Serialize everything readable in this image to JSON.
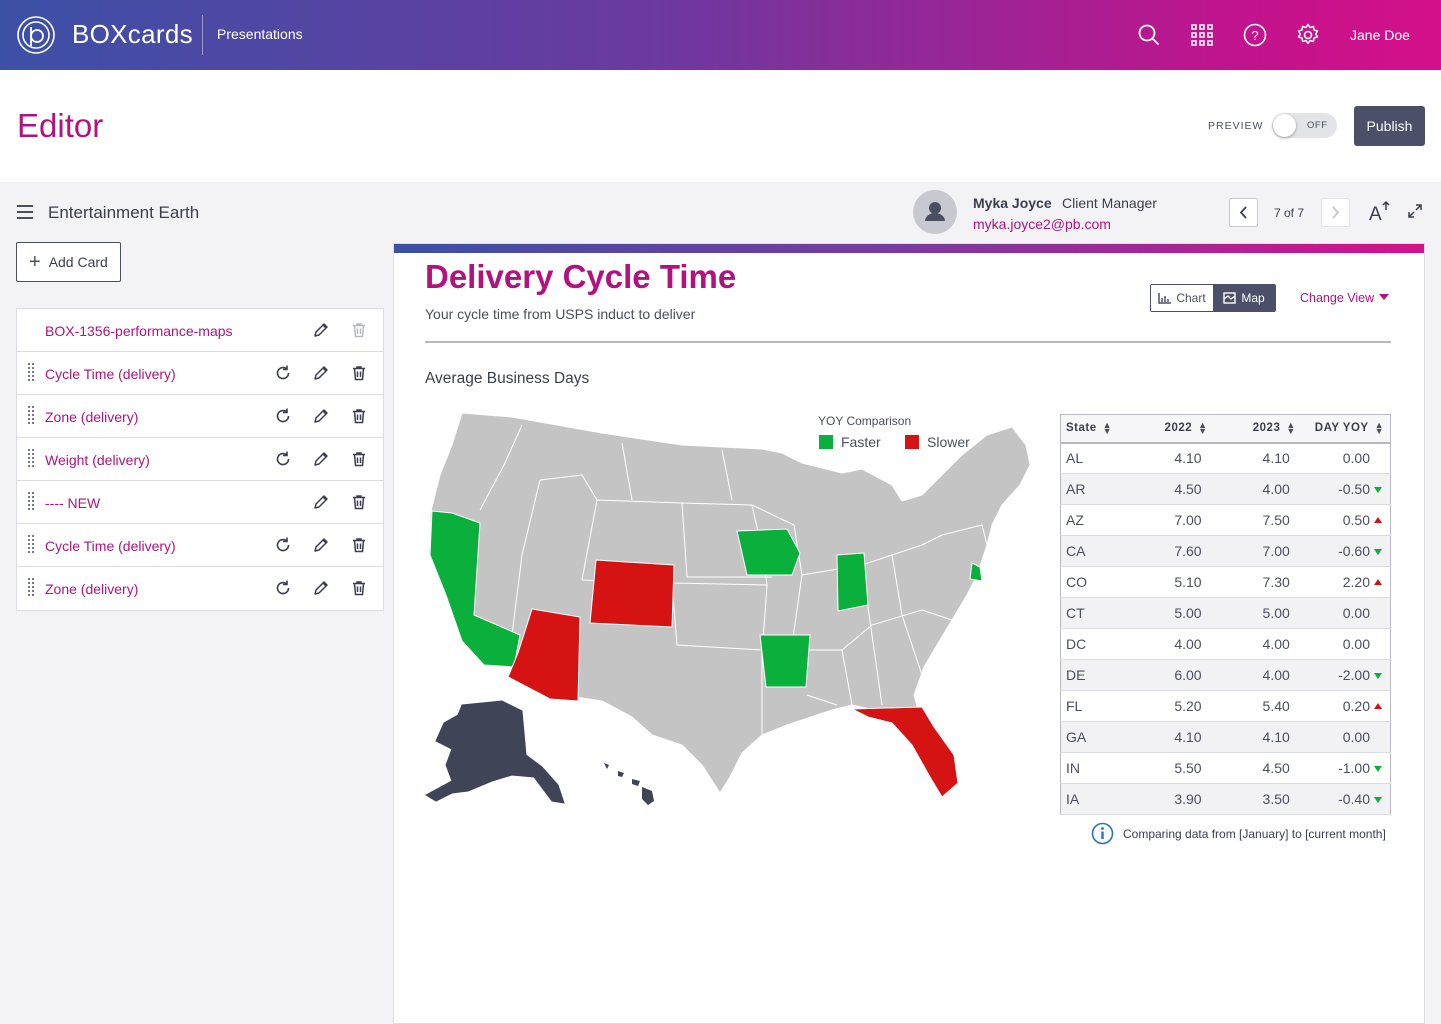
{
  "topbar": {
    "brand": "BOXcards",
    "section": "Presentations",
    "user": "Jane Doe",
    "icons": [
      "search-icon",
      "apps-grid-icon",
      "help-icon",
      "settings-icon"
    ]
  },
  "editor": {
    "title": "Editor",
    "preview_label": "PREVIEW",
    "toggle_state": "OFF",
    "publish_label": "Publish"
  },
  "sidebar": {
    "project_name": "Entertainment Earth",
    "add_card_label": "Add Card",
    "cards": [
      {
        "label": "BOX-1356-performance-maps"
      },
      {
        "label": "Cycle Time (delivery)"
      },
      {
        "label": "Zone (delivery)"
      },
      {
        "label": "Weight (delivery)"
      },
      {
        "label": "---- NEW"
      },
      {
        "label": "Cycle Time (delivery)"
      },
      {
        "label": "Zone (delivery)"
      }
    ]
  },
  "contact": {
    "name": "Myka Joyce",
    "role": "Client Manager",
    "email": "myka.joyce2@pb.com"
  },
  "pager": {
    "text": "7 of 7"
  },
  "card": {
    "title": "Delivery Cycle Time",
    "subtitle": "Your cycle time from USPS induct to deliver",
    "view_chart": "Chart",
    "view_map": "Map",
    "change_view": "Change View",
    "metric_label": "Average Business Days"
  },
  "legend": {
    "title": "YOY Comparison",
    "faster": "Faster",
    "slower": "Slower",
    "faster_color": "#0aaf3c",
    "slower_color": "#d61313",
    "neutral_color": "#c4c4c4",
    "alaska_color": "#3f4456"
  },
  "table": {
    "headers": [
      "State",
      "2022",
      "2023",
      "DAY YOY"
    ],
    "rows": [
      {
        "state": "AL",
        "y2022": "4.10",
        "y2023": "4.10",
        "yoy": "0.00",
        "trend": "none"
      },
      {
        "state": "AR",
        "y2022": "4.50",
        "y2023": "4.00",
        "yoy": "-0.50",
        "trend": "down"
      },
      {
        "state": "AZ",
        "y2022": "7.00",
        "y2023": "7.50",
        "yoy": "0.50",
        "trend": "up"
      },
      {
        "state": "CA",
        "y2022": "7.60",
        "y2023": "7.00",
        "yoy": "-0.60",
        "trend": "down"
      },
      {
        "state": "CO",
        "y2022": "5.10",
        "y2023": "7.30",
        "yoy": "2.20",
        "trend": "up"
      },
      {
        "state": "CT",
        "y2022": "5.00",
        "y2023": "5.00",
        "yoy": "0.00",
        "trend": "none"
      },
      {
        "state": "DC",
        "y2022": "4.00",
        "y2023": "4.00",
        "yoy": "0.00",
        "trend": "none"
      },
      {
        "state": "DE",
        "y2022": "6.00",
        "y2023": "4.00",
        "yoy": "-2.00",
        "trend": "down"
      },
      {
        "state": "FL",
        "y2022": "5.20",
        "y2023": "5.40",
        "yoy": "0.20",
        "trend": "up"
      },
      {
        "state": "GA",
        "y2022": "4.10",
        "y2023": "4.10",
        "yoy": "0.00",
        "trend": "none"
      },
      {
        "state": "IN",
        "y2022": "5.50",
        "y2023": "4.50",
        "yoy": "-1.00",
        "trend": "down"
      },
      {
        "state": "IA",
        "y2022": "3.90",
        "y2023": "3.50",
        "yoy": "-0.40",
        "trend": "down"
      }
    ]
  },
  "footnote": "Comparing data from [January] to [current month]"
}
